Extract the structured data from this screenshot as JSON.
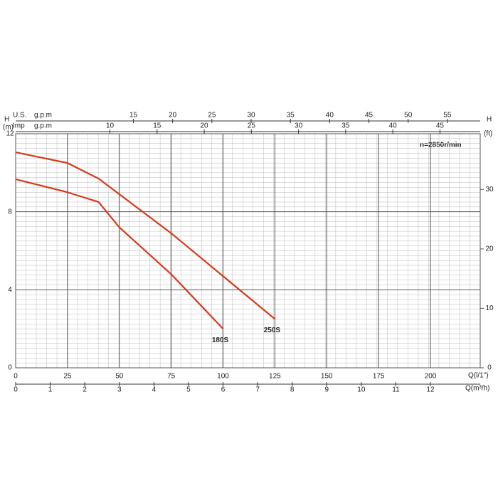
{
  "chart_data": {
    "type": "line",
    "annotation": "n=2850r/min",
    "ylabel": "H",
    "yunit": "(m)",
    "ylim": [
      0,
      12
    ],
    "yticks": [
      0,
      4,
      8,
      12
    ],
    "y2label": "H",
    "y2unit": "(ft)",
    "y2lim": [
      0,
      39.37
    ],
    "y2ticks": [
      0,
      10,
      20,
      30
    ],
    "xlabel": "Q(l/1\")",
    "xlim": [
      0,
      224
    ],
    "xticks": [
      0,
      25,
      50,
      75,
      100,
      125,
      150,
      175,
      200
    ],
    "extra_x_axes": [
      {
        "label": "Q(m³/h)",
        "position": "bottom",
        "lim": [
          0,
          13.44
        ],
        "ticks": [
          0,
          1,
          2,
          3,
          4,
          5,
          6,
          7,
          8,
          9,
          10,
          11,
          12
        ]
      },
      {
        "label": "U.S.",
        "unit": "g.p.m",
        "position": "top",
        "lim": [
          0,
          59.18
        ],
        "ticks": [
          15,
          20,
          25,
          30,
          35,
          40,
          45,
          50,
          55
        ]
      },
      {
        "label": "Imp",
        "unit": "g.p.m",
        "position": "top",
        "lim": [
          0,
          49.27
        ],
        "ticks": [
          10,
          15,
          20,
          25,
          30,
          35,
          40,
          45
        ]
      }
    ],
    "grid": true,
    "x": [
      0,
      25,
      40,
      50,
      75,
      100,
      125
    ],
    "series": [
      {
        "name": "180S",
        "color": "#d63a1c",
        "values": [
          9.67,
          9.0,
          8.5,
          7.2,
          4.8,
          2.0,
          null
        ]
      },
      {
        "name": "250S",
        "color": "#d63a1c",
        "values": [
          11.05,
          10.5,
          9.7,
          8.9,
          6.9,
          4.7,
          2.5
        ]
      }
    ]
  }
}
